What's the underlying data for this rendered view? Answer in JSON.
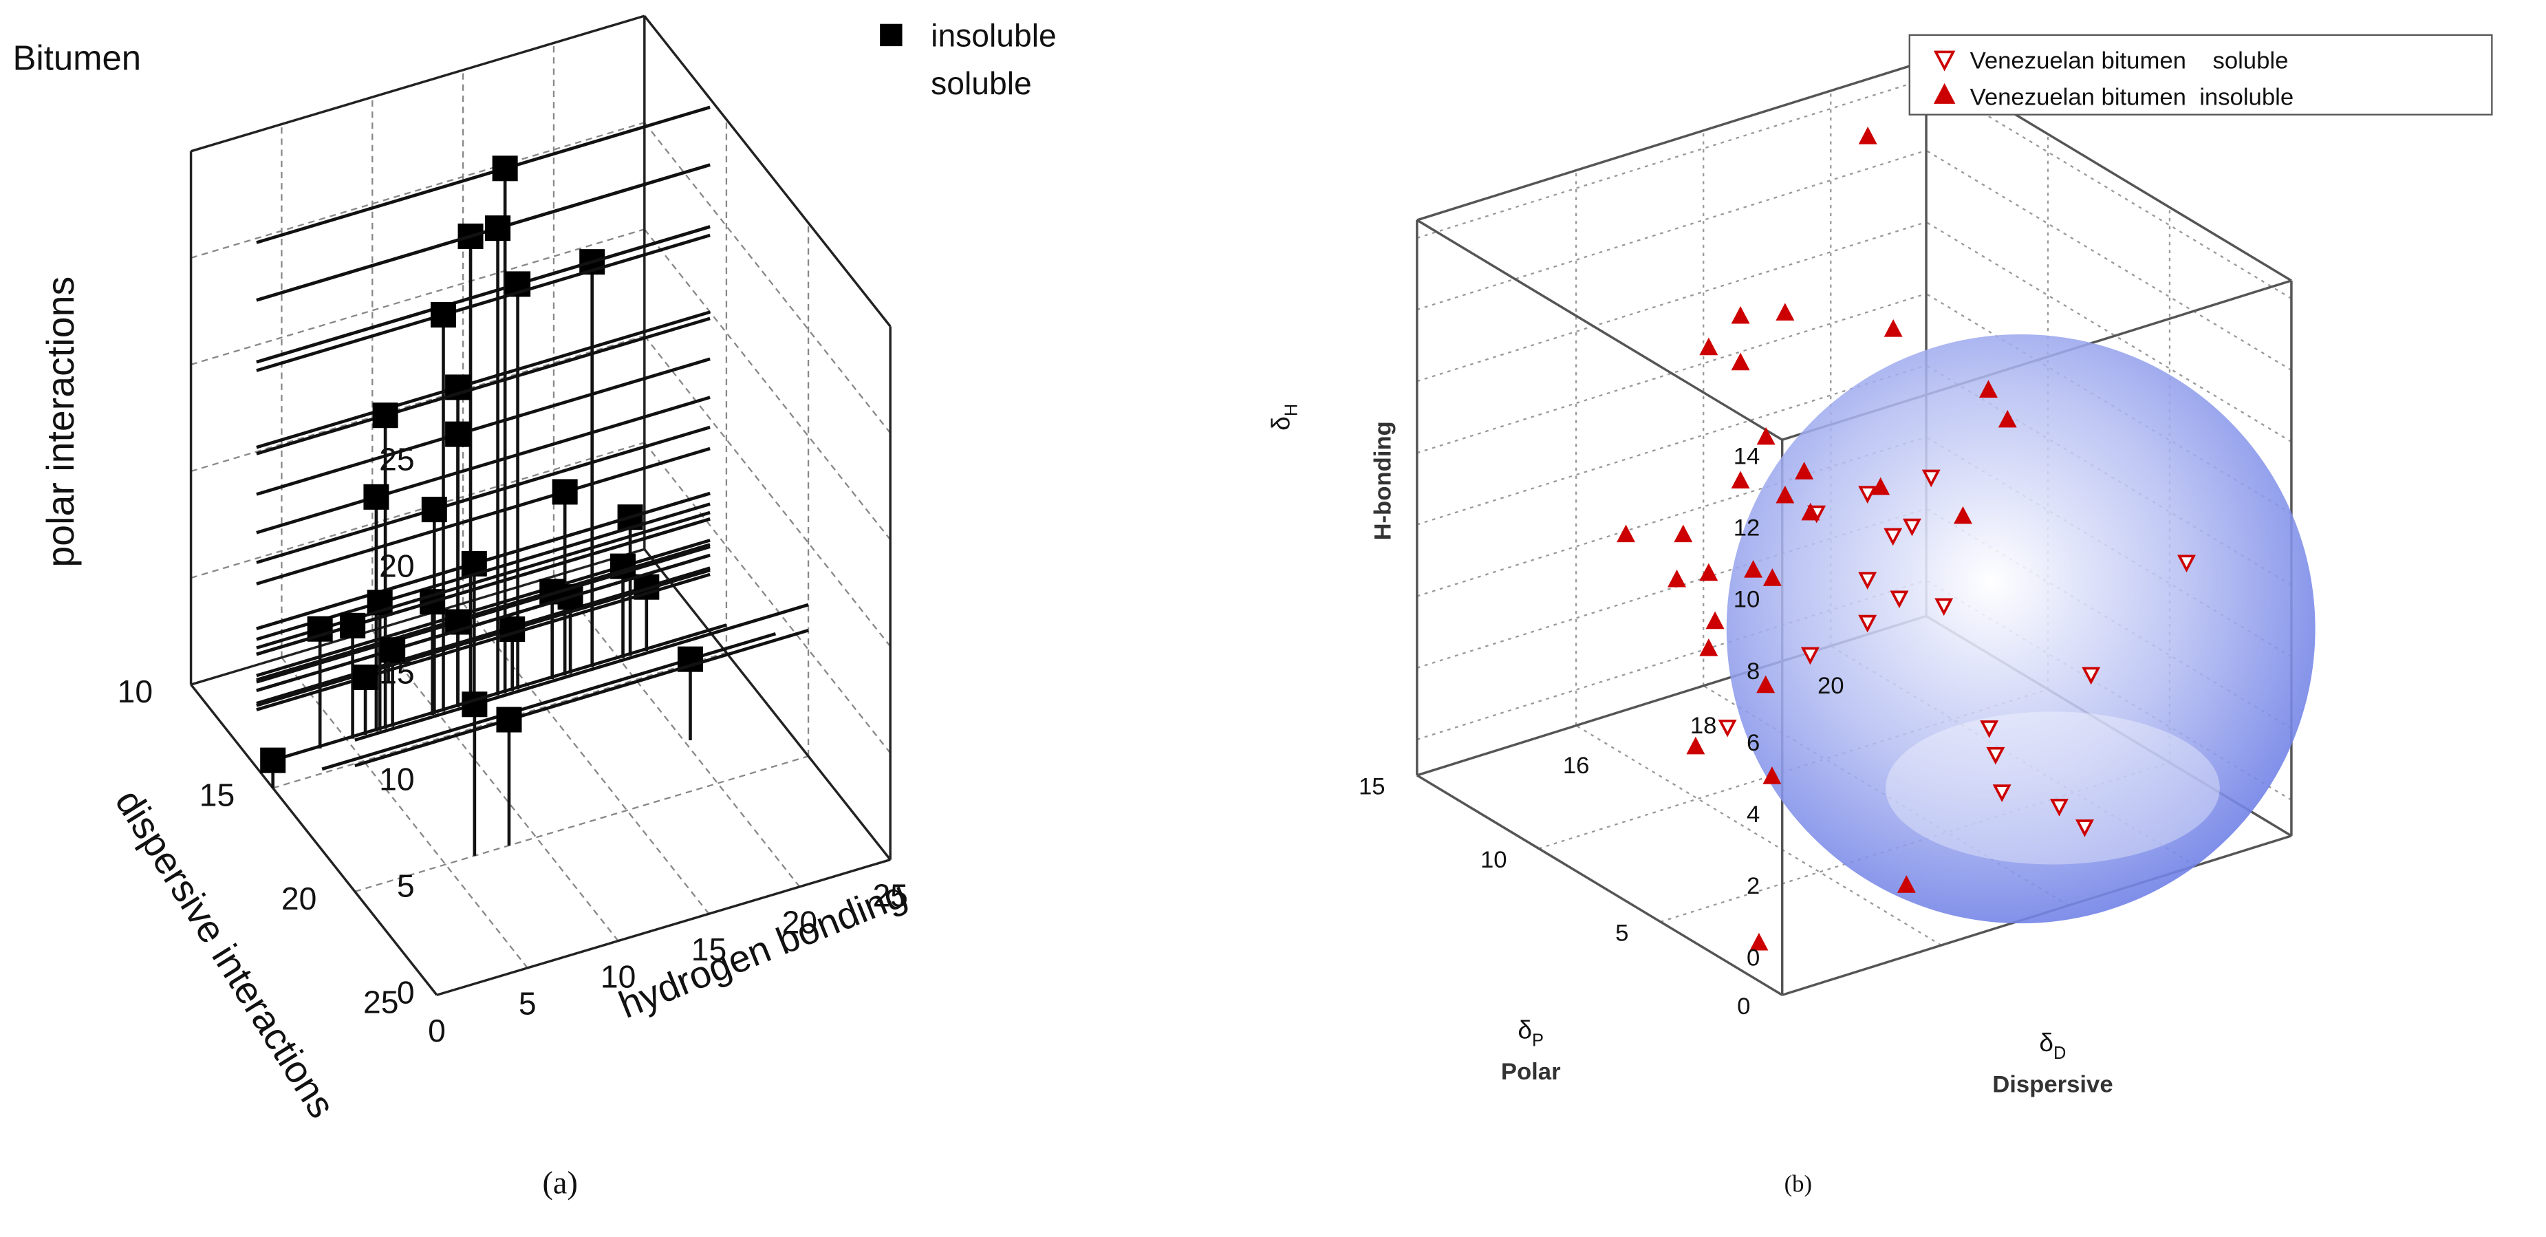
{
  "chart_data": [
    {
      "type": "scatter3d",
      "title": "Bitumen",
      "caption": "(a)",
      "x_label": "hydrogen bonding",
      "y_label": "dispersive interactions",
      "z_label": "polar interactions",
      "xlim": [
        0,
        25
      ],
      "xticks": [
        0,
        5,
        10,
        15,
        20,
        25
      ],
      "ylim": [
        10,
        25
      ],
      "yticks": [
        10,
        15,
        20,
        25
      ],
      "zlim": [
        0,
        25
      ],
      "zticks": [
        0,
        5,
        10,
        15,
        20,
        25
      ],
      "grid": true,
      "legend": "upper right",
      "series": [
        {
          "name": "insoluble",
          "color": "#000000",
          "marker": "square",
          "x": [
            13.7,
            11.8,
            13.3,
            18.5,
            14.4,
            10.3,
            11.1,
            7.1,
            11.1,
            6.6,
            9.8,
            17,
            20.6,
            12,
            20.2,
            21.5,
            16.3,
            17.3,
            6.8,
            9.7,
            11.1,
            14.1,
            3.5,
            5.3,
            7.5,
            6,
            20.3,
            6.6,
            8.5,
            0
          ],
          "y": [
            14,
            14,
            14,
            14,
            14,
            14,
            14,
            14,
            14,
            14,
            14,
            14,
            14,
            14,
            14,
            14,
            14,
            14,
            14,
            14,
            14,
            14,
            14,
            14,
            14,
            14,
            18,
            20,
            20,
            15
          ],
          "z": [
            24.6,
            21.9,
            21.9,
            19.0,
            19.0,
            18.6,
            15.0,
            14.7,
            12.8,
            11.0,
            9.6,
            8.6,
            6.5,
            6.5,
            4.3,
            3.0,
            4.1,
            3.6,
            6.0,
            5.3,
            4.0,
            2.9,
            5.6,
            5.3,
            3.6,
            2.7,
            3.8,
            7.1,
            5.9,
            1.3
          ]
        },
        {
          "name": "soluble",
          "x": [],
          "y": [],
          "z": []
        }
      ]
    },
    {
      "type": "scatter3d",
      "caption": "(b)",
      "x_label": {
        "symbol": "δ",
        "subscript": "D",
        "name": "Dispersive"
      },
      "y_label": {
        "symbol": "δ",
        "subscript": "P",
        "name": "Polar"
      },
      "z_label": {
        "symbol": "δ",
        "subscript": "H",
        "name": "H-bonding"
      },
      "xlim": [
        13.5,
        21.5
      ],
      "xticks": [
        16,
        18,
        20
      ],
      "ylim": [
        0,
        15
      ],
      "yticks": [
        0,
        5,
        10,
        15
      ],
      "zlim": [
        -1,
        14.5
      ],
      "zticks": [
        0,
        2,
        4,
        6,
        8,
        10,
        12,
        14
      ],
      "grid": true,
      "legend": "upper right",
      "series": [
        {
          "name": "Venezuelan bitumen    soluble",
          "color": "#cc0000",
          "marker": "triangle-down",
          "filled": false,
          "x": [
            18.9,
            17.9,
            18.6,
            18.3,
            17.1,
            17.9,
            18.4,
            19.1,
            17.9,
            17.0,
            21.0,
            19.5,
            15.7,
            17.9,
            18.0,
            18.1,
            19.0,
            19.4
          ],
          "y": [
            8,
            8,
            8,
            8,
            8,
            8,
            8,
            8,
            8,
            8,
            3,
            3,
            8,
            3,
            3,
            3,
            3,
            3
          ],
          "z": [
            7.2,
            7.3,
            6.0,
            5.9,
            7.2,
            4.9,
            4.1,
            3.5,
            3.7,
            3.3,
            5.7,
            3.4,
            2.0,
            2.8,
            2.0,
            0.9,
            0.0,
            -0.8
          ]
        },
        {
          "name": "Venezuelan bitumen  insoluble",
          "color": "#cc0000",
          "marker": "triangle-up",
          "filled": true,
          "x": [
            20.2,
            18.2,
            18.9,
            17.7,
            18.2,
            20.6,
            19.8,
            20.1,
            18.6,
            19.2,
            18.2,
            18.9,
            19.3,
            20.4,
            19.4,
            16.4,
            17.3,
            17.7,
            18.4,
            18.7,
            17.2,
            17.8,
            17.7,
            16.3,
            15.2,
            16.4,
            16.6,
            13.9
          ],
          "y": [
            14,
            14,
            14,
            14,
            14,
            14,
            8,
            8,
            14,
            14,
            14,
            14,
            14,
            14,
            8,
            14,
            14,
            14,
            14,
            14,
            14,
            14,
            14,
            8,
            8,
            8,
            3,
            2
          ],
          "z": [
            13.5,
            9.6,
            9.3,
            9.0,
            8.3,
            7.9,
            9.1,
            8.1,
            6.0,
            4.7,
            5.0,
            4.2,
            3.5,
            3.6,
            5.8,
            4.5,
            4.0,
            2.7,
            2.4,
            2.0,
            2.8,
            1.3,
            0.6,
            2.8,
            1.7,
            0.2,
            -0.9,
            -0.6
          ]
        }
      ]
    }
  ]
}
